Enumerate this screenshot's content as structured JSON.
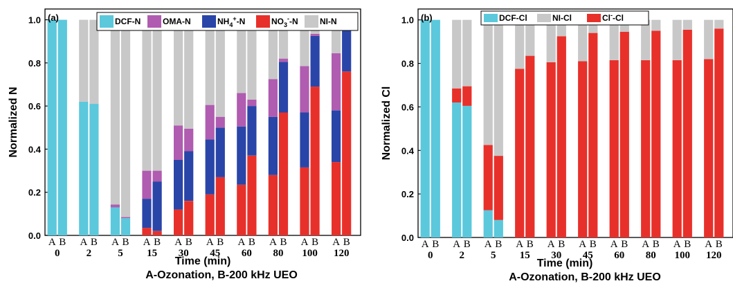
{
  "caption": "A-Ozonation, B-200 kHz UEO",
  "colors": {
    "DCF": "#5bc8dc",
    "OMA": "#b05cb0",
    "NH4": "#2a45a8",
    "NO3": "#e8302a",
    "NI": "#c8c8c8"
  },
  "chart_data": [
    {
      "type": "bar",
      "stacked": true,
      "panel_label": "(a)",
      "xlabel": "Time (min)",
      "ylabel": "Normalized N",
      "ylim": [
        0,
        1.05
      ],
      "yticks": [
        "0.0",
        "0.2",
        "0.4",
        "0.6",
        "0.8",
        "1.0"
      ],
      "categories": [
        "0",
        "2",
        "5",
        "15",
        "30",
        "45",
        "60",
        "80",
        "100",
        "120"
      ],
      "bar_labels": [
        "A",
        "B"
      ],
      "legend": [
        {
          "key": "DCF",
          "text": "DCF-N",
          "sup": ""
        },
        {
          "key": "OMA",
          "text": "OMA-N",
          "sup": ""
        },
        {
          "key": "NH4",
          "text": "NH",
          "sub": "4",
          "sup": "+",
          "tail": "-N"
        },
        {
          "key": "NO3",
          "text": "NO",
          "sub": "3",
          "sup": "-",
          "tail": "-N"
        },
        {
          "key": "NI",
          "text": "NI-N",
          "sup": ""
        }
      ],
      "stack_order": [
        "DCF",
        "NO3",
        "NH4",
        "OMA",
        "NI"
      ],
      "series": [
        {
          "key": "DCF",
          "A": [
            1.0,
            0.62,
            0.13,
            0.0,
            0.0,
            0.0,
            0.0,
            0.0,
            0.0,
            0.0
          ],
          "B": [
            1.0,
            0.61,
            0.08,
            0.0,
            0.0,
            0.0,
            0.0,
            0.0,
            0.0,
            0.0
          ]
        },
        {
          "key": "NO3",
          "A": [
            0.0,
            0.0,
            0.0,
            0.035,
            0.12,
            0.19,
            0.235,
            0.28,
            0.315,
            0.34
          ],
          "B": [
            0.0,
            0.0,
            0.0,
            0.02,
            0.16,
            0.27,
            0.37,
            0.57,
            0.69,
            0.76
          ]
        },
        {
          "key": "NH4",
          "A": [
            0.0,
            0.0,
            0.0,
            0.135,
            0.23,
            0.255,
            0.27,
            0.27,
            0.255,
            0.24
          ],
          "B": [
            0.0,
            0.0,
            0.0,
            0.23,
            0.23,
            0.23,
            0.23,
            0.235,
            0.235,
            0.23
          ]
        },
        {
          "key": "OMA",
          "A": [
            0.0,
            0.0,
            0.013,
            0.13,
            0.16,
            0.16,
            0.155,
            0.175,
            0.215,
            0.265
          ],
          "B": [
            0.0,
            0.0,
            0.005,
            0.05,
            0.105,
            0.05,
            0.03,
            0.015,
            0.01,
            0.0
          ]
        },
        {
          "key": "NI",
          "A": [
            0.0,
            0.38,
            0.857,
            0.69,
            0.49,
            0.395,
            0.34,
            0.275,
            0.215,
            0.155
          ],
          "B": [
            0.0,
            0.39,
            0.915,
            0.7,
            0.505,
            0.45,
            0.37,
            0.18,
            0.065,
            0.01
          ]
        }
      ]
    },
    {
      "type": "bar",
      "stacked": true,
      "panel_label": "(b)",
      "xlabel": "Time (min)",
      "ylabel": "Normalized Cl",
      "ylim": [
        0,
        1.05
      ],
      "yticks": [
        "0.0",
        "0.2",
        "0.4",
        "0.6",
        "0.8",
        "1.0"
      ],
      "categories": [
        "0",
        "2",
        "5",
        "15",
        "30",
        "45",
        "60",
        "80",
        "100",
        "120"
      ],
      "bar_labels": [
        "A",
        "B"
      ],
      "legend": [
        {
          "key": "DCF",
          "text": "DCF-Cl",
          "sup": ""
        },
        {
          "key": "NI",
          "text": "NI-Cl",
          "sup": ""
        },
        {
          "key": "NO3",
          "text": "Cl",
          "sup": "-",
          "tail": "-Cl"
        }
      ],
      "stack_order": [
        "DCF",
        "NO3",
        "NI"
      ],
      "series": [
        {
          "key": "DCF",
          "A": [
            1.0,
            0.62,
            0.125,
            0.0,
            0.0,
            0.0,
            0.0,
            0.0,
            0.0,
            0.0
          ],
          "B": [
            1.0,
            0.605,
            0.08,
            0.0,
            0.0,
            0.0,
            0.0,
            0.0,
            0.0,
            0.0
          ]
        },
        {
          "key": "NO3",
          "A": [
            0.0,
            0.065,
            0.3,
            0.775,
            0.805,
            0.81,
            0.815,
            0.815,
            0.815,
            0.82
          ],
          "B": [
            0.0,
            0.09,
            0.295,
            0.835,
            0.925,
            0.94,
            0.945,
            0.95,
            0.955,
            0.96
          ]
        },
        {
          "key": "NI",
          "A": [
            0.0,
            0.315,
            0.575,
            0.225,
            0.195,
            0.19,
            0.185,
            0.185,
            0.185,
            0.18
          ],
          "B": [
            0.0,
            0.305,
            0.625,
            0.165,
            0.075,
            0.06,
            0.055,
            0.05,
            0.045,
            0.04
          ]
        }
      ]
    }
  ]
}
